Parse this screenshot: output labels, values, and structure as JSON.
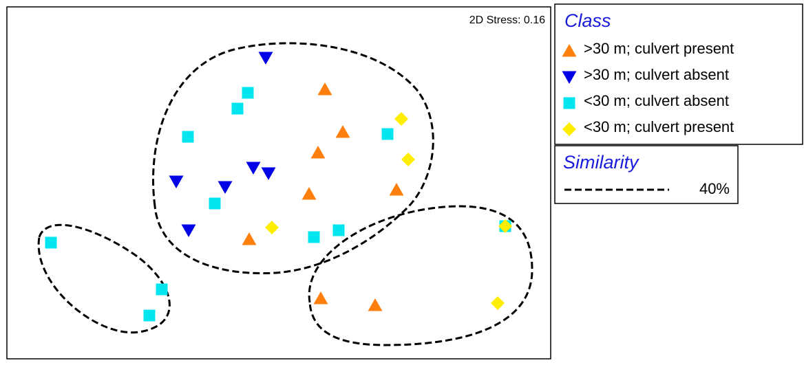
{
  "chart_data": {
    "type": "scatter",
    "annotation": "2D Stress: 0.16",
    "legend_title": "Class",
    "similarity_title": "Similarity",
    "similarity_label": "40%",
    "xlim": [
      0,
      790
    ],
    "ylim": [
      0,
      512
    ],
    "series": [
      {
        "name": ">30 m; culvert present",
        "color": "#ff7f0e",
        "marker": "triangle-up",
        "x": [
          462,
          488,
          452,
          439,
          566,
          352,
          456,
          535
        ],
        "y": [
          392,
          330,
          300,
          240,
          246,
          174,
          88,
          78
        ]
      },
      {
        "name": ">30 m; culvert absent",
        "color": "#0000e6",
        "marker": "triangle-down",
        "x": [
          376,
          358,
          380,
          246,
          317,
          264
        ],
        "y": [
          438,
          278,
          270,
          258,
          250,
          187
        ]
      },
      {
        "name": "<30 m; culvert absent",
        "color": "#00e5ee",
        "marker": "square",
        "x": [
          350,
          335,
          263,
          302,
          446,
          482,
          553,
          64,
          225,
          207,
          724
        ],
        "y": [
          387,
          364,
          323,
          226,
          177,
          187,
          327,
          169,
          101,
          63,
          193
        ]
      },
      {
        "name": "<30 m; culvert present",
        "color": "#ffee00",
        "marker": "diamond",
        "x": [
          573,
          583,
          385,
          724,
          713
        ],
        "y": [
          349,
          290,
          191,
          193,
          81
        ]
      }
    ]
  }
}
